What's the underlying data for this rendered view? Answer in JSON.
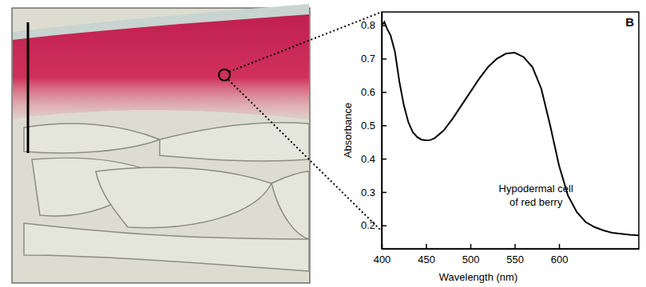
{
  "chart_data": {
    "type": "line",
    "panel_label": "B",
    "xlabel": "Wavelength (nm)",
    "ylabel": "Absorbance",
    "annotations": [
      "Hypodermal cell",
      "of red berry"
    ],
    "x": [
      400,
      403,
      406,
      410,
      415,
      420,
      425,
      430,
      435,
      440,
      445,
      450,
      455,
      460,
      470,
      480,
      490,
      500,
      510,
      520,
      530,
      540,
      550,
      560,
      570,
      580,
      590,
      600,
      610,
      620,
      630,
      640,
      650,
      660,
      670,
      680,
      690
    ],
    "values": [
      0.8,
      0.81,
      0.79,
      0.77,
      0.72,
      0.63,
      0.56,
      0.51,
      0.48,
      0.465,
      0.457,
      0.455,
      0.456,
      0.462,
      0.485,
      0.52,
      0.56,
      0.6,
      0.64,
      0.675,
      0.7,
      0.715,
      0.718,
      0.705,
      0.675,
      0.61,
      0.5,
      0.38,
      0.29,
      0.24,
      0.21,
      0.195,
      0.185,
      0.178,
      0.175,
      0.172,
      0.17
    ],
    "color": "#000000",
    "xlim": [
      400,
      690
    ],
    "ylim": [
      0.13,
      0.84
    ],
    "xticks": [
      400,
      450,
      500,
      550,
      600
    ],
    "yticks": [
      0.2,
      0.3,
      0.4,
      0.5,
      0.6,
      0.7,
      0.8
    ]
  }
}
